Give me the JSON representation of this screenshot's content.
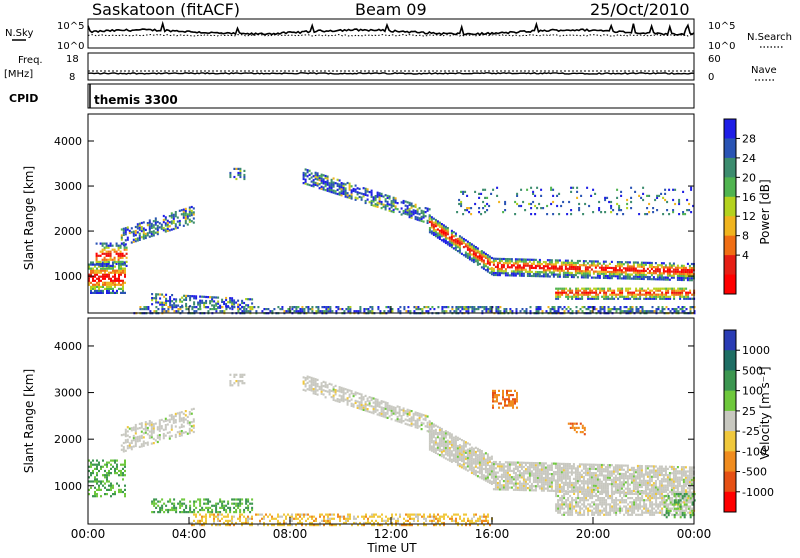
{
  "header": {
    "station": "Saskatoon (fitACF)",
    "beam": "Beam 09",
    "date": "25/Oct/2010"
  },
  "noise_panel": {
    "left_label": "N.Sky",
    "left_ticks": [
      "10^5",
      "10^0"
    ],
    "right_ticks": [
      "10^5",
      "10^0"
    ],
    "right_label": "N.Search"
  },
  "freq_panel": {
    "left_label_1": "Freq.",
    "left_label_2": "[MHz]",
    "left_ticks": [
      "18",
      "8"
    ],
    "right_ticks": [
      "60",
      "0"
    ],
    "right_label": "Nave"
  },
  "cpid_panel": {
    "label": "CPID",
    "text": "themis 3300"
  },
  "chart_data": [
    {
      "type": "heatmap",
      "name": "power",
      "ylabel": "Slant Range [km]",
      "xlabel": "",
      "ylim": [
        180,
        4600
      ],
      "yticks": [
        "4000",
        "3000",
        "2000",
        "1000"
      ],
      "xlim": [
        0,
        24
      ],
      "colorbar": {
        "label": "Power [dB]",
        "ticks": [
          "28",
          "24",
          "20",
          "16",
          "12",
          "8",
          "4"
        ],
        "colors": [
          "#1e1ee6",
          "#2a54b4",
          "#3c8c6e",
          "#50b450",
          "#b4d21e",
          "#f0b41e",
          "#f06e14",
          "#e61e14",
          "#ff0000"
        ]
      }
    },
    {
      "type": "heatmap",
      "name": "velocity",
      "ylabel": "Slant Range [km]",
      "xlabel": "Time UT",
      "ylim": [
        180,
        4600
      ],
      "yticks": [
        "4000",
        "3000",
        "2000",
        "1000"
      ],
      "xlim": [
        0,
        24
      ],
      "xticks": [
        "00:00",
        "04:00",
        "08:00",
        "12:00",
        "16:00",
        "20:00",
        "00:00"
      ],
      "colorbar": {
        "label": "Velocity [m s⁻¹]",
        "ticks": [
          "1000",
          "500",
          "100",
          "25",
          "-25",
          "-100",
          "-500",
          "-1000"
        ],
        "colors": [
          "#2a3cb4",
          "#1e6e64",
          "#3c9650",
          "#6ec83c",
          "#c8c8c0",
          "#f0c83c",
          "#f08c1e",
          "#e65014",
          "#ff0000"
        ]
      }
    }
  ]
}
